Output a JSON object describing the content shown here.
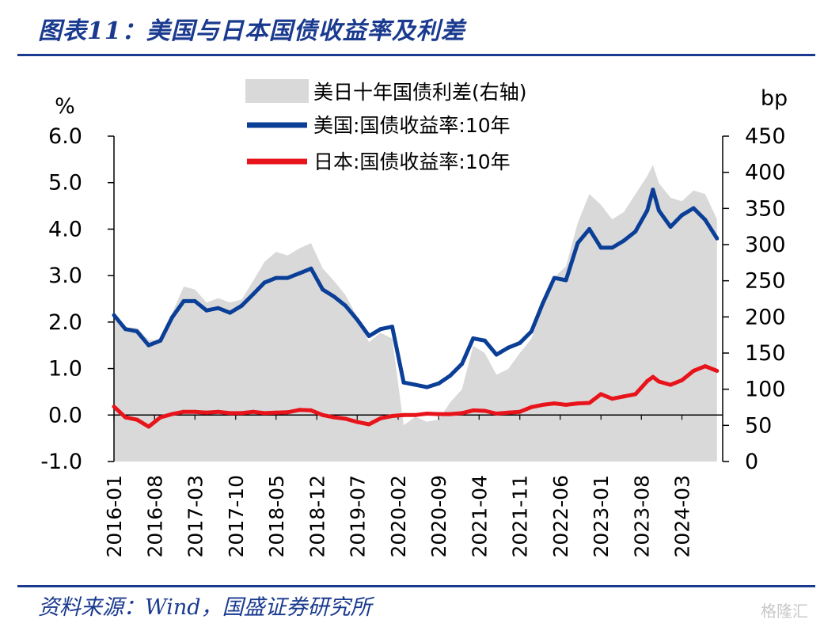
{
  "header": {
    "title": "图表11：美国与日本国债收益率及利差"
  },
  "footer": {
    "source": "资料来源：Wind，国盛证券研究所",
    "watermark": "格隆汇"
  },
  "colors": {
    "header": "#1a3a8f",
    "spread_fill": "#d9d9d9",
    "us": "#0b3f97",
    "jp": "#e8141b"
  },
  "chart_data": {
    "type": "line",
    "title": "",
    "ylabel_left": "%",
    "ylabel_right": "bp",
    "ylim_left": [
      -1.0,
      6.0
    ],
    "ylim_right": [
      0,
      450
    ],
    "yticks_left": [
      "6.0",
      "5.0",
      "4.0",
      "3.0",
      "2.0",
      "1.0",
      "0.0",
      "-1.0"
    ],
    "yticks_right": [
      "450",
      "400",
      "350",
      "300",
      "250",
      "200",
      "150",
      "100",
      "50",
      "0"
    ],
    "xticks": [
      "2016-01",
      "2016-08",
      "2017-03",
      "2017-10",
      "2018-05",
      "2018-12",
      "2019-07",
      "2020-02",
      "2020-09",
      "2021-04",
      "2021-11",
      "2022-06",
      "2023-01",
      "2023-08",
      "2024-03"
    ],
    "legend_placement": "top",
    "grid": false,
    "x": [
      "2016-01",
      "2016-03",
      "2016-05",
      "2016-07",
      "2016-09",
      "2016-11",
      "2017-01",
      "2017-03",
      "2017-05",
      "2017-07",
      "2017-09",
      "2017-11",
      "2018-01",
      "2018-03",
      "2018-05",
      "2018-07",
      "2018-09",
      "2018-11",
      "2019-01",
      "2019-03",
      "2019-05",
      "2019-07",
      "2019-09",
      "2019-11",
      "2020-01",
      "2020-03",
      "2020-05",
      "2020-07",
      "2020-09",
      "2020-11",
      "2021-01",
      "2021-03",
      "2021-05",
      "2021-07",
      "2021-09",
      "2021-11",
      "2022-01",
      "2022-03",
      "2022-05",
      "2022-07",
      "2022-09",
      "2022-11",
      "2023-01",
      "2023-03",
      "2023-05",
      "2023-07",
      "2023-09",
      "2023-10",
      "2023-11",
      "2024-01",
      "2024-03",
      "2024-05",
      "2024-07",
      "2024-09"
    ],
    "series": [
      {
        "name": "美日十年国债利差(右轴)",
        "axis": "right",
        "style": "area",
        "values": [
          200,
          185,
          185,
          168,
          168,
          205,
          242,
          238,
          220,
          226,
          220,
          224,
          250,
          276,
          290,
          285,
          295,
          302,
          267,
          250,
          230,
          200,
          165,
          178,
          170,
          50,
          62,
          55,
          58,
          82,
          100,
          160,
          150,
          120,
          128,
          150,
          170,
          215,
          255,
          270,
          330,
          370,
          355,
          335,
          345,
          370,
          395,
          410,
          385,
          365,
          360,
          375,
          370,
          335
        ]
      },
      {
        "name": "美国:国债收益率:10年",
        "axis": "left",
        "style": "line",
        "values": [
          2.15,
          1.85,
          1.8,
          1.5,
          1.6,
          2.1,
          2.45,
          2.45,
          2.25,
          2.3,
          2.2,
          2.35,
          2.6,
          2.85,
          2.95,
          2.95,
          3.05,
          3.15,
          2.7,
          2.55,
          2.35,
          2.05,
          1.7,
          1.85,
          1.9,
          0.7,
          0.65,
          0.6,
          0.68,
          0.85,
          1.1,
          1.65,
          1.6,
          1.3,
          1.45,
          1.55,
          1.8,
          2.4,
          2.95,
          2.9,
          3.7,
          4.0,
          3.6,
          3.6,
          3.75,
          3.95,
          4.4,
          4.85,
          4.4,
          4.05,
          4.3,
          4.45,
          4.2,
          3.8
        ]
      },
      {
        "name": "日本:国债收益率:10年",
        "axis": "left",
        "style": "line",
        "values": [
          0.18,
          -0.05,
          -0.1,
          -0.25,
          -0.05,
          0.02,
          0.07,
          0.07,
          0.05,
          0.07,
          0.04,
          0.04,
          0.07,
          0.04,
          0.05,
          0.06,
          0.11,
          0.1,
          0.0,
          -0.05,
          -0.08,
          -0.15,
          -0.2,
          -0.07,
          -0.02,
          0.0,
          0.0,
          0.03,
          0.02,
          0.02,
          0.04,
          0.1,
          0.09,
          0.03,
          0.05,
          0.07,
          0.17,
          0.22,
          0.25,
          0.22,
          0.25,
          0.26,
          0.45,
          0.35,
          0.4,
          0.45,
          0.73,
          0.82,
          0.72,
          0.65,
          0.75,
          0.95,
          1.05,
          0.95
        ]
      }
    ]
  }
}
